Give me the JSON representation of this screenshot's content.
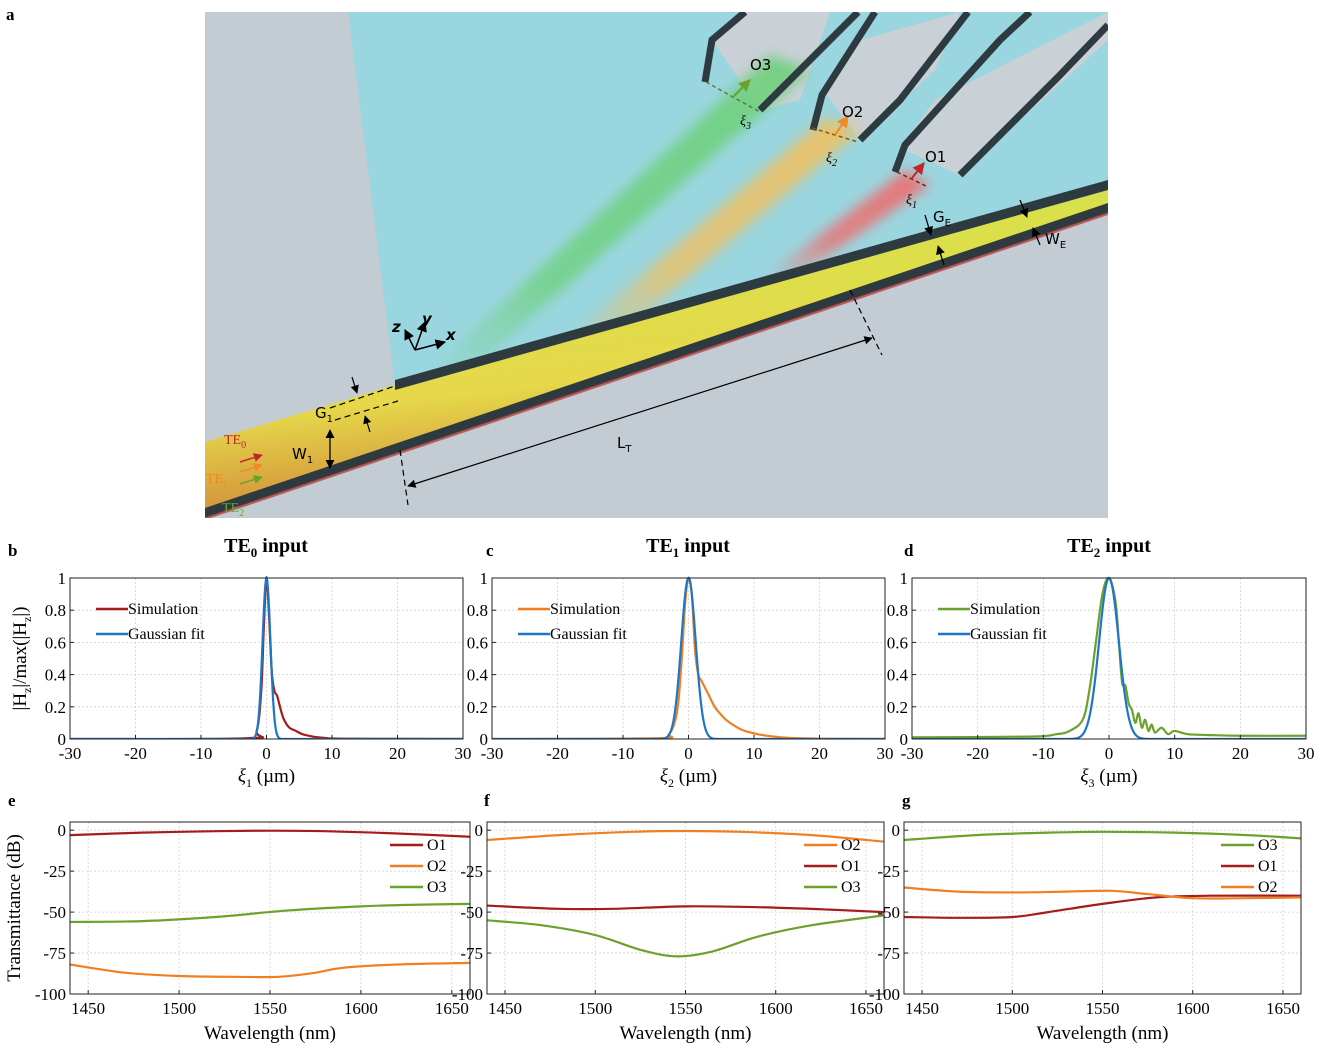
{
  "schematic": {
    "letter": "a",
    "labels": {
      "O1": "O1",
      "O2": "O2",
      "O3": "O3",
      "xi1": "ξ",
      "xi1_sub": "1",
      "xi2": "ξ",
      "xi2_sub": "2",
      "xi3": "ξ",
      "xi3_sub": "3",
      "GE": "G",
      "GE_sub": "E",
      "WE": "W",
      "WE_sub": "E",
      "G1": "G",
      "G1_sub": "1",
      "W1": "W",
      "W1_sub": "1",
      "LT": "L",
      "LT_sub": "T",
      "TE0": "TE",
      "TE0_sub": "0",
      "TE1": "TE",
      "TE1_sub": "1",
      "TE2": "TE",
      "TE2_sub": "2",
      "ax_x": "x",
      "ax_y": "y",
      "ax_z": "z"
    },
    "colors": {
      "slab": "#9ad6df",
      "substrate": "#c3cbd3",
      "wall": "#2d3b40",
      "te0": "#c0262b",
      "te1": "#f08a24",
      "te2": "#6aa22c"
    }
  },
  "chart_data": [
    {
      "id": "b",
      "letter": "b",
      "type": "line",
      "title": "TE",
      "title_sub": "0",
      "title_rest": " input",
      "xlabel": "ξ",
      "xlabel_sub": "1",
      "xlabel_rest": " (µm)",
      "ylabel": "|H|/max(|H|)",
      "ylabel_parts": [
        "|H",
        "z",
        "|/max(|H",
        "z",
        "|)"
      ],
      "xlim": [
        -30,
        30
      ],
      "ylim": [
        0,
        1
      ],
      "xticks": [
        -30,
        -20,
        -10,
        0,
        10,
        20,
        30
      ],
      "yticks": [
        0,
        0.2,
        0.4,
        0.6,
        0.8,
        1
      ],
      "ytick_labels": [
        "0",
        "0.2",
        "0.4",
        "0.6",
        "0.8",
        "1"
      ],
      "grid": true,
      "legend_position": "top-left",
      "series": [
        {
          "name": "Simulation",
          "color": "#a51c1c",
          "x": [
            -30,
            -3,
            -1.5,
            -0.8,
            -0.4,
            0,
            0.4,
            0.8,
            1.2,
            1.6,
            2.0,
            2.4,
            2.8,
            3.5,
            4.5,
            5.5,
            6.5,
            7.5,
            9,
            12,
            30
          ],
          "y": [
            0,
            0.005,
            0.05,
            0.3,
            0.7,
            1.0,
            0.75,
            0.42,
            0.3,
            0.27,
            0.21,
            0.15,
            0.11,
            0.07,
            0.05,
            0.03,
            0.02,
            0.012,
            0.006,
            0.002,
            0
          ]
        },
        {
          "name": "Gaussian fit",
          "color": "#1f77c4",
          "gaussian": {
            "mu": 0,
            "sigma": 0.6,
            "amp": 1
          }
        }
      ]
    },
    {
      "id": "c",
      "letter": "c",
      "type": "line",
      "title": "TE",
      "title_sub": "1",
      "title_rest": " input",
      "xlabel": "ξ",
      "xlabel_sub": "2",
      "xlabel_rest": " (µm)",
      "xlim": [
        -30,
        30
      ],
      "ylim": [
        0,
        1
      ],
      "xticks": [
        -30,
        -20,
        -10,
        0,
        10,
        20,
        30
      ],
      "yticks": [
        0,
        0.2,
        0.4,
        0.6,
        0.8,
        1
      ],
      "grid": true,
      "legend_position": "top-left",
      "series": [
        {
          "name": "Simulation",
          "color": "#f07f22",
          "x": [
            -30,
            -5,
            -3,
            -2,
            -1.5,
            -1,
            -0.5,
            0,
            0.5,
            1,
            1.5,
            2,
            3,
            4,
            5,
            6,
            8,
            10,
            12,
            15,
            20,
            30
          ],
          "y": [
            0,
            0.005,
            0.03,
            0.12,
            0.25,
            0.52,
            0.85,
            1.0,
            0.9,
            0.55,
            0.4,
            0.36,
            0.28,
            0.2,
            0.15,
            0.11,
            0.06,
            0.035,
            0.02,
            0.008,
            0.002,
            0
          ]
        },
        {
          "name": "Gaussian fit",
          "color": "#1f77c4",
          "gaussian": {
            "mu": 0,
            "sigma": 1.1,
            "amp": 1
          }
        }
      ]
    },
    {
      "id": "d",
      "letter": "d",
      "type": "line",
      "title": "TE",
      "title_sub": "2",
      "title_rest": " input",
      "xlabel": "ξ",
      "xlabel_sub": "3",
      "xlabel_rest": " (µm)",
      "xlim": [
        -30,
        30
      ],
      "ylim": [
        0,
        1
      ],
      "xticks": [
        -30,
        -20,
        -10,
        0,
        10,
        20,
        30
      ],
      "yticks": [
        0,
        0.2,
        0.4,
        0.6,
        0.8,
        1
      ],
      "grid": true,
      "legend_position": "top-left",
      "series": [
        {
          "name": "Simulation",
          "color": "#6aa22c",
          "x": [
            -30,
            -12,
            -8,
            -6,
            -4,
            -3,
            -2,
            -1,
            0,
            1,
            1.5,
            2,
            2.5,
            3,
            3.5,
            4,
            4.5,
            5,
            5.5,
            6,
            6.5,
            7,
            8,
            9,
            10,
            12,
            15,
            20,
            30
          ],
          "y": [
            0.01,
            0.015,
            0.03,
            0.05,
            0.12,
            0.3,
            0.6,
            0.9,
            1.0,
            0.85,
            0.6,
            0.35,
            0.33,
            0.22,
            0.18,
            0.1,
            0.16,
            0.07,
            0.12,
            0.05,
            0.09,
            0.04,
            0.07,
            0.03,
            0.05,
            0.03,
            0.025,
            0.02,
            0.02
          ]
        },
        {
          "name": "Gaussian fit",
          "color": "#1f77c4",
          "gaussian": {
            "mu": 0,
            "sigma": 1.5,
            "amp": 1
          }
        }
      ]
    },
    {
      "id": "e",
      "letter": "e",
      "type": "line",
      "xlabel": "Wavelength (nm)",
      "ylabel": "Transmittance (dB)",
      "xlim": [
        1440,
        1660
      ],
      "ylim": [
        -100,
        5
      ],
      "xticks": [
        1450,
        1500,
        1550,
        1600,
        1650
      ],
      "yticks": [
        0,
        -25,
        -50,
        -75,
        -100
      ],
      "grid": true,
      "legend_position": "right",
      "series": [
        {
          "name": "O1",
          "color": "#a51c1c",
          "x": [
            1440,
            1480,
            1520,
            1550,
            1580,
            1620,
            1660
          ],
          "y": [
            -3,
            -1.5,
            -0.6,
            -0.3,
            -0.6,
            -2,
            -4
          ]
        },
        {
          "name": "O2",
          "color": "#f07f22",
          "x": [
            1440,
            1470,
            1500,
            1530,
            1555,
            1575,
            1590,
            1620,
            1660
          ],
          "y": [
            -82,
            -87,
            -89,
            -89.5,
            -89.5,
            -87,
            -84,
            -82,
            -81
          ]
        },
        {
          "name": "O3",
          "color": "#6aa22c",
          "x": [
            1440,
            1480,
            1520,
            1560,
            1600,
            1630,
            1660
          ],
          "y": [
            -56,
            -55.5,
            -53,
            -49,
            -46.5,
            -45.5,
            -45
          ]
        }
      ]
    },
    {
      "id": "f",
      "letter": "f",
      "type": "line",
      "xlabel": "Wavelength (nm)",
      "xlim": [
        1440,
        1660
      ],
      "ylim": [
        -100,
        5
      ],
      "xticks": [
        1450,
        1500,
        1550,
        1600,
        1650
      ],
      "yticks": [
        0,
        -25,
        -50,
        -75,
        -100
      ],
      "grid": true,
      "legend_position": "right",
      "series": [
        {
          "name": "O2",
          "color": "#f07f22",
          "x": [
            1440,
            1480,
            1520,
            1550,
            1580,
            1620,
            1660
          ],
          "y": [
            -6,
            -3,
            -1,
            -0.5,
            -1,
            -3,
            -7
          ]
        },
        {
          "name": "O1",
          "color": "#a51c1c",
          "x": [
            1440,
            1480,
            1510,
            1550,
            1590,
            1630,
            1660
          ],
          "y": [
            -46,
            -48,
            -48,
            -46.5,
            -47,
            -48.5,
            -50
          ]
        },
        {
          "name": "O3",
          "color": "#6aa22c",
          "x": [
            1440,
            1470,
            1500,
            1525,
            1545,
            1565,
            1590,
            1620,
            1660
          ],
          "y": [
            -55,
            -58,
            -64,
            -73,
            -77,
            -74,
            -65,
            -58,
            -52
          ]
        }
      ]
    },
    {
      "id": "g",
      "letter": "g",
      "type": "line",
      "xlabel": "Wavelength (nm)",
      "xlim": [
        1440,
        1660
      ],
      "ylim": [
        -100,
        5
      ],
      "xticks": [
        1450,
        1500,
        1550,
        1600,
        1650
      ],
      "yticks": [
        0,
        -25,
        -50,
        -75,
        -100
      ],
      "grid": true,
      "legend_position": "right",
      "series": [
        {
          "name": "O3",
          "color": "#6aa22c",
          "x": [
            1440,
            1480,
            1520,
            1550,
            1590,
            1630,
            1660
          ],
          "y": [
            -6,
            -3,
            -1.5,
            -1,
            -1.5,
            -3,
            -5
          ]
        },
        {
          "name": "O1",
          "color": "#a51c1c",
          "x": [
            1440,
            1470,
            1500,
            1520,
            1550,
            1580,
            1610,
            1660
          ],
          "y": [
            -53,
            -53.5,
            -53,
            -50,
            -45,
            -41,
            -40,
            -40
          ]
        },
        {
          "name": "O2",
          "color": "#f07f22",
          "x": [
            1440,
            1470,
            1500,
            1530,
            1555,
            1575,
            1600,
            1630,
            1660
          ],
          "y": [
            -35,
            -37.5,
            -38,
            -37.5,
            -37,
            -39,
            -41.5,
            -41.5,
            -41
          ]
        }
      ]
    }
  ]
}
